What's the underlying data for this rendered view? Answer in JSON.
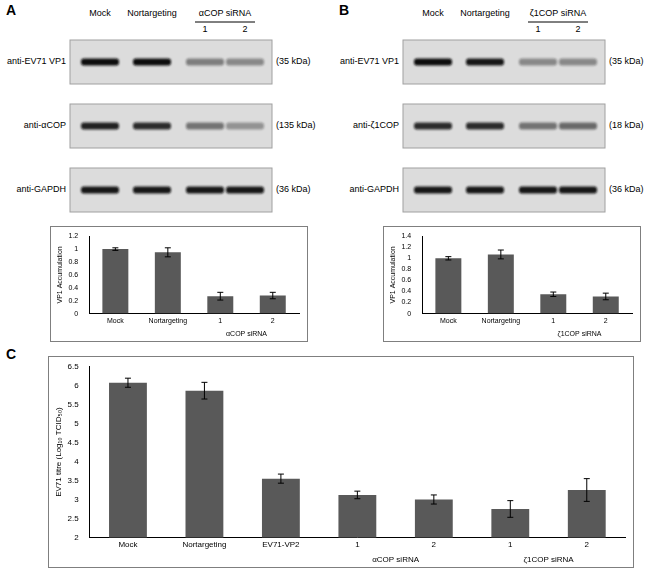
{
  "panel_letters": [
    "A",
    "B",
    "C"
  ],
  "blots": [
    {
      "lanes": [
        "Mock",
        "Nortargeting"
      ],
      "group": {
        "label": "αCOP siRNA",
        "lanes": [
          "1",
          "2"
        ]
      },
      "rows": [
        {
          "label": "anti-EV71 VP1",
          "size": "(35 kDa)",
          "bands": [
            1,
            1,
            0.45,
            0.4
          ]
        },
        {
          "label": "anti-αCOP",
          "size": "(135 kDa)",
          "bands": [
            0.9,
            0.85,
            0.5,
            0.35
          ]
        },
        {
          "label": "anti-GAPDH",
          "size": "(36 kDa)",
          "bands": [
            0.95,
            0.95,
            0.95,
            0.95
          ]
        }
      ]
    },
    {
      "lanes": [
        "Mock",
        "Nortargeting"
      ],
      "group": {
        "label": "ζ1COP siRNA",
        "lanes": [
          "1",
          "2"
        ]
      },
      "rows": [
        {
          "label": "anti-EV71 VP1",
          "size": "(35 kDa)",
          "bands": [
            1,
            0.95,
            0.4,
            0.4
          ]
        },
        {
          "label": "anti-ζ1COP",
          "size": "(18 kDa)",
          "bands": [
            0.85,
            0.85,
            0.5,
            0.55
          ]
        },
        {
          "label": "anti-GAPDH",
          "size": "(36 kDa)",
          "bands": [
            0.95,
            0.95,
            0.95,
            0.95
          ]
        }
      ]
    }
  ],
  "chart_data": [
    {
      "type": "bar",
      "ylabel": "VP1 Accumulation",
      "categories": [
        "Mock",
        "Nortargeting",
        "1",
        "2"
      ],
      "values": [
        1.0,
        0.95,
        0.27,
        0.28
      ],
      "errors": [
        0.02,
        0.07,
        0.06,
        0.05
      ],
      "annotations": [
        {
          "text": "αCOP siRNA",
          "first": 2,
          "last": 3
        }
      ],
      "color": "#595959",
      "ylim": [
        0,
        1.2
      ],
      "yticks": [
        0,
        0.2,
        0.4,
        0.6,
        0.8,
        1,
        1.2
      ],
      "grid": false
    },
    {
      "type": "bar",
      "ylabel": "VP1 Accumulation",
      "categories": [
        "Mock",
        "Nortargeting",
        "1",
        "2"
      ],
      "values": [
        1.0,
        1.07,
        0.35,
        0.31
      ],
      "errors": [
        0.03,
        0.08,
        0.04,
        0.06
      ],
      "annotations": [
        {
          "text": "ζ1COP siRNA",
          "first": 2,
          "last": 3
        }
      ],
      "color": "#595959",
      "ylim": [
        0,
        1.4
      ],
      "yticks": [
        0,
        0.2,
        0.4,
        0.6,
        0.8,
        1,
        1.2,
        1.4
      ],
      "grid": false
    },
    {
      "type": "bar",
      "ylabel": "EV71 titre (Log₁₀ TCID₅₀)",
      "categories": [
        "Mock",
        "Nortargeting",
        "EV71-VP2",
        "1",
        "2",
        "1",
        "2"
      ],
      "values": [
        6.08,
        5.87,
        3.55,
        3.12,
        3.0,
        2.75,
        3.25
      ],
      "errors": [
        0.12,
        0.22,
        0.12,
        0.1,
        0.12,
        0.22,
        0.3
      ],
      "annotations": [
        {
          "text": "αCOP siRNA",
          "first": 3,
          "last": 4
        },
        {
          "text": "ζ1COP siRNA",
          "first": 5,
          "last": 6
        }
      ],
      "color": "#595959",
      "ylim": [
        2,
        6.5
      ],
      "yticks": [
        2,
        2.5,
        3,
        3.5,
        4,
        4.5,
        5,
        5.5,
        6,
        6.5
      ],
      "grid": false
    }
  ]
}
